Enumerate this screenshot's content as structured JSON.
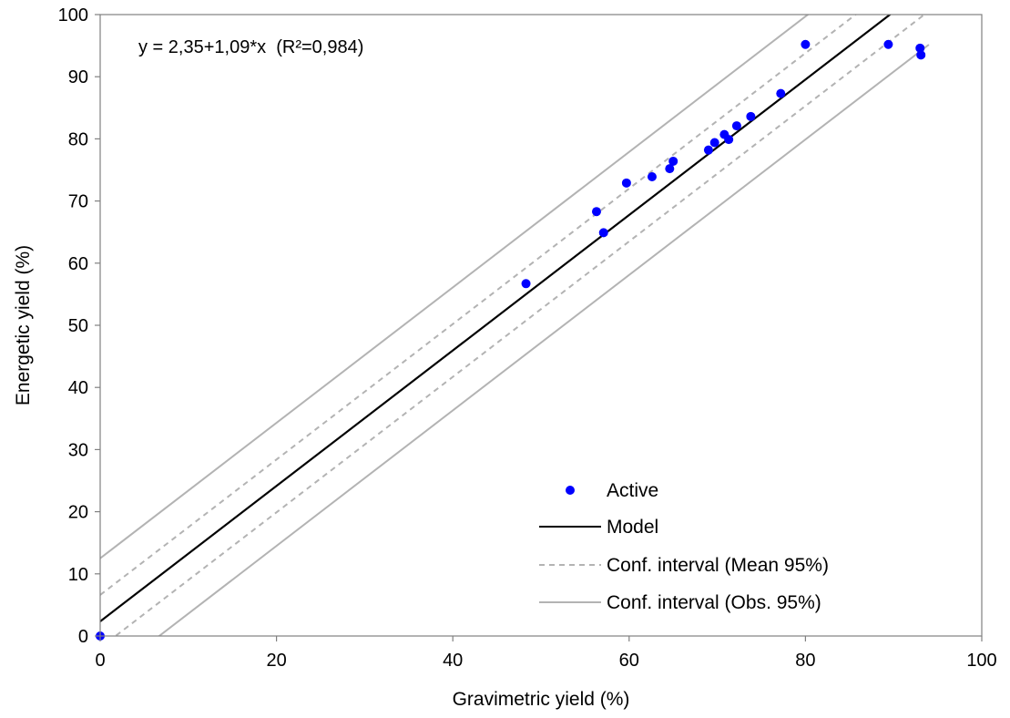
{
  "chart_data": {
    "type": "scatter",
    "xlabel": "Gravimetric yield (%)",
    "ylabel": "Energetic yield (%)",
    "xlim": [
      0,
      100
    ],
    "ylim": [
      0,
      100
    ],
    "xticks": [
      "0",
      "20",
      "40",
      "60",
      "80",
      "100"
    ],
    "yticks": [
      "0",
      "10",
      "20",
      "30",
      "40",
      "50",
      "60",
      "70",
      "80",
      "90",
      "100"
    ],
    "annotation": "y = 2,35+1,09*x  (R²=0,984)",
    "grid": false,
    "legend_position": "bottom-right",
    "series": [
      {
        "name": "Active",
        "kind": "points",
        "color": "#0000FF",
        "points": [
          [
            0,
            0
          ],
          [
            48.3,
            56.7
          ],
          [
            56.3,
            68.3
          ],
          [
            57.1,
            64.9
          ],
          [
            59.7,
            72.9
          ],
          [
            62.6,
            73.9
          ],
          [
            64.6,
            75.2
          ],
          [
            65.0,
            76.4
          ],
          [
            69.0,
            78.2
          ],
          [
            69.7,
            79.4
          ],
          [
            70.8,
            80.7
          ],
          [
            71.3,
            79.9
          ],
          [
            72.2,
            82.1
          ],
          [
            73.8,
            83.6
          ],
          [
            77.2,
            87.3
          ],
          [
            80.0,
            95.2
          ],
          [
            89.4,
            95.2
          ],
          [
            93.0,
            94.6
          ],
          [
            93.1,
            93.5
          ]
        ]
      },
      {
        "name": "Model",
        "kind": "line",
        "color": "#000000",
        "dash": "none",
        "intercept": 2.35,
        "slope": 1.09,
        "x_range": [
          0,
          94
        ]
      },
      {
        "name": "Conf. interval (Mean 95%)",
        "kind": "band",
        "color": "#B3B3B3",
        "dash": "dashed",
        "slope": 1.09,
        "upper_intercept": 6.6,
        "lower_intercept": -1.9,
        "x_range": [
          0,
          94
        ]
      },
      {
        "name": "Conf. interval (Obs. 95%)",
        "kind": "band",
        "color": "#B3B3B3",
        "dash": "solid",
        "slope": 1.09,
        "upper_intercept": 12.5,
        "lower_intercept": -7.3,
        "x_range": [
          0,
          94
        ]
      }
    ]
  }
}
